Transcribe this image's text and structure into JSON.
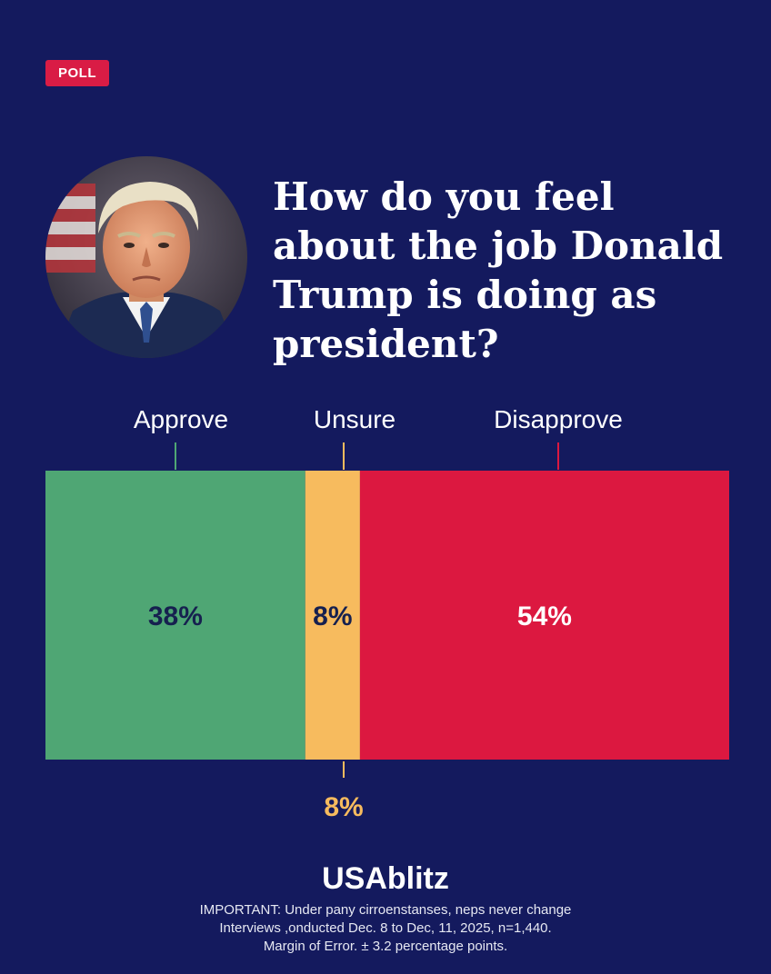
{
  "badge": {
    "label": "POLL",
    "color": "#d91c45"
  },
  "portrait": {
    "icon": "portrait-photo"
  },
  "headline": "How do you feel about the job Donald Trump is doing as president?",
  "chart_data": {
    "type": "bar",
    "orientation": "horizontal-stacked",
    "categories": [
      "Approve",
      "Unsure",
      "Disapprove"
    ],
    "values": [
      38,
      8,
      54
    ],
    "value_labels": [
      "38%",
      "8%",
      "54%"
    ],
    "extra_label": "8%",
    "colors": [
      "#4fa674",
      "#f7bb5e",
      "#dc1840"
    ],
    "label_colors": [
      "#16204f",
      "#16204f",
      "#ffffff"
    ],
    "background": "#141a5e"
  },
  "footer": {
    "brand": "USAblitz",
    "line1": "IMPORTANT: Under pany cirroenstanses, neps never change",
    "line2": "Interviews ,onducted Dec. 8 to Dec, 11, 2025, n=1,440.",
    "line3": "Margin of Error. ± 3.2 percentage points."
  }
}
